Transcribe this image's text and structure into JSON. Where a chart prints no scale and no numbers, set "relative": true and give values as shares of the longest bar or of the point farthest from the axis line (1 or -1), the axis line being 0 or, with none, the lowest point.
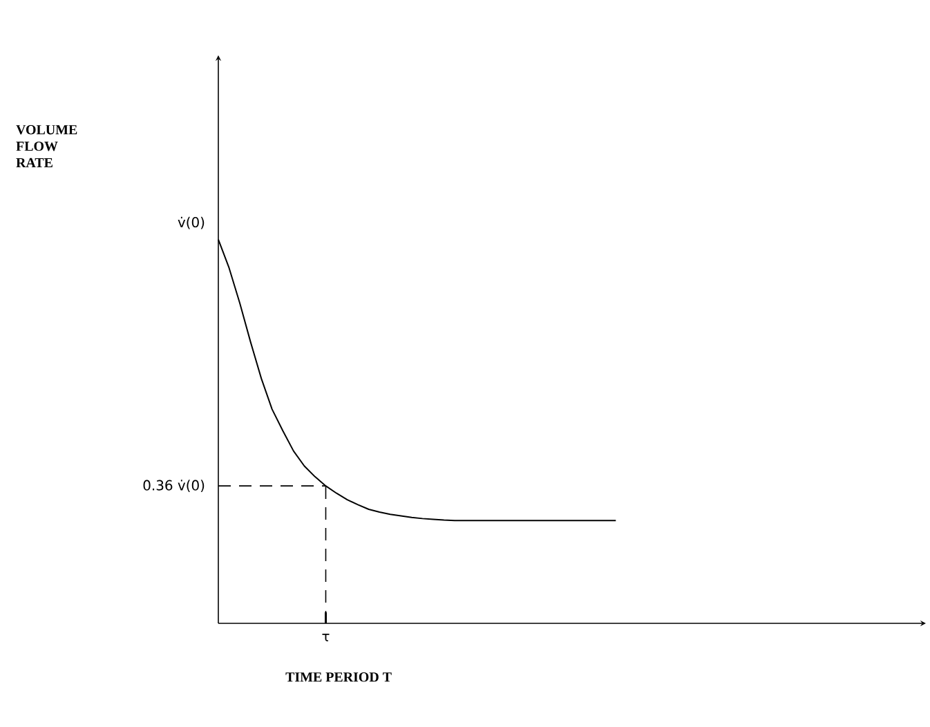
{
  "chart_data": {
    "type": "line",
    "relative": true,
    "xlabel": "TIME PERIOD T",
    "categories": [
      null,
      null,
      null,
      null,
      null,
      null,
      null,
      null,
      null,
      null,
      null,
      null,
      null,
      null,
      null,
      null,
      null,
      null,
      null,
      null,
      null,
      null,
      null,
      null,
      null,
      null,
      null,
      null,
      null,
      null,
      null,
      null,
      null,
      null,
      null,
      null,
      null,
      null
    ],
    "series": [
      {
        "color": "#000000",
        "values": [
          1.0,
          0.926,
          0.834,
          0.733,
          0.638,
          0.558,
          0.502,
          0.449,
          0.41,
          0.382,
          0.358,
          0.339,
          0.322,
          0.309,
          0.297,
          0.29,
          0.284,
          0.28,
          0.276,
          0.273,
          0.271,
          0.269,
          0.268,
          0.268,
          0.268,
          0.268,
          0.268,
          0.268,
          0.268,
          0.268,
          0.268,
          0.268,
          0.268,
          0.268,
          0.268,
          0.268,
          0.268,
          0.268
        ]
      }
    ],
    "annotations": [
      "v̇(0)",
      "VOLUME FLOW RATE"
    ],
    "ref_lines": [
      {
        "axis": "y",
        "value": 0.358,
        "label": "0.36 v̇(0)",
        "line_style": "dashed"
      },
      {
        "axis": "x",
        "label": "τ",
        "line_style": "dashed"
      }
    ],
    "line_style": "solid"
  }
}
